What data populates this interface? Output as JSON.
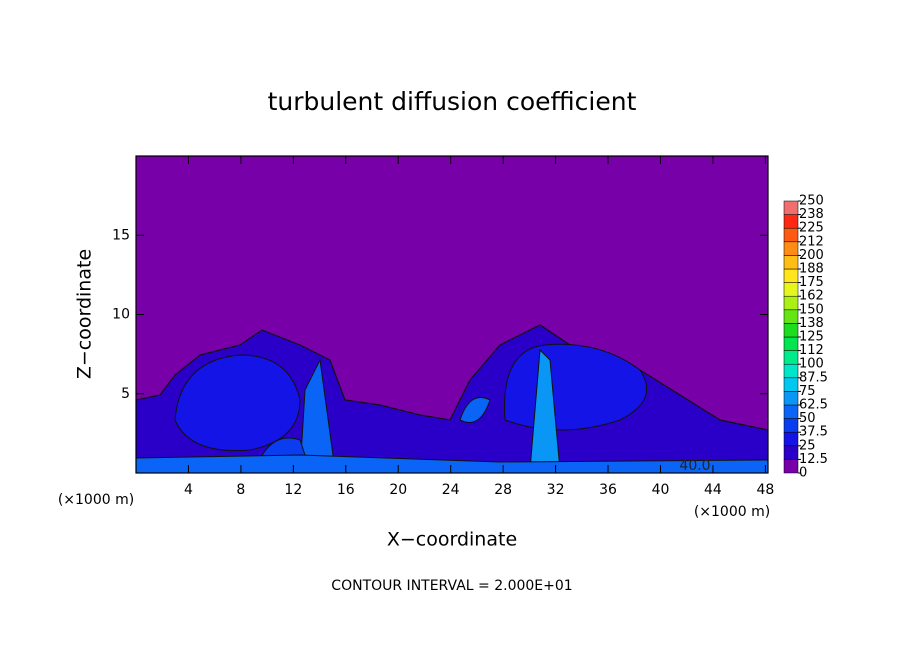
{
  "chart_data": {
    "type": "contour",
    "title": "turbulent diffusion coefficient",
    "x_label": "X−coordinate",
    "y_label": "Z−coordinate",
    "x_unit_left": "(×1000 m)",
    "x_unit_right": "(×1000 m)",
    "footer": "CONTOUR INTERVAL = 2.000E+01",
    "contour_label": "40.0",
    "xlim": [
      0,
      48.2
    ],
    "ylim": [
      0,
      20
    ],
    "xticks": [
      4,
      8,
      12,
      16,
      20,
      24,
      28,
      32,
      36,
      40,
      44,
      48
    ],
    "yticks": [
      5,
      10,
      15
    ],
    "colorbar": {
      "lim": [
        0,
        250
      ],
      "ticks": [
        0,
        12.5,
        25,
        37.5,
        50,
        62.5,
        75,
        87.5,
        100,
        {
          "value": 112.5,
          "label": "112"
        },
        125,
        {
          "value": 137.5,
          "label": "138"
        },
        150,
        {
          "value": 162.5,
          "label": "162"
        },
        175,
        {
          "value": 187.5,
          "label": "188"
        },
        200,
        {
          "value": 212.5,
          "label": "212"
        },
        225,
        {
          "value": 237.5,
          "label": "238"
        },
        250
      ],
      "colors": [
        "#7800a8",
        "#2a00c8",
        "#1414e6",
        "#0a3cf0",
        "#0a64f5",
        "#0a96f5",
        "#00c8f0",
        "#00e6c8",
        "#00eb8c",
        "#00e650",
        "#1edc1e",
        "#64e614",
        "#aaf014",
        "#e6f51e",
        "#ffe61e",
        "#ffbe14",
        "#ff8c14",
        "#ff5a14",
        "#ff2814",
        "#f06e6e"
      ]
    }
  }
}
